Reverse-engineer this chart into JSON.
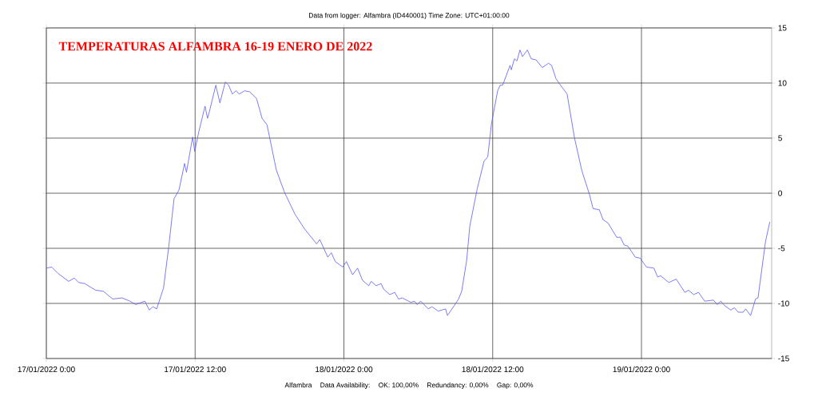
{
  "chart_data": {
    "type": "line",
    "title": "Data from logger: Alfambra (ID440001) Time Zone: UTC+01:00:00",
    "subtitle": "TEMPERATURAS ALFAMBRA 16-19 ENERO DE 2022",
    "annotations": [
      "Alfambra",
      "Data Availability:",
      "OK: 100,00%",
      "Redundancy: 0,00%",
      "Gap: 0,00%"
    ],
    "x": [
      "2022-01-17T00:00",
      "2022-01-17T00:26",
      "2022-01-17T00:58",
      "2022-01-17T01:48",
      "2022-01-17T02:15",
      "2022-01-17T02:36",
      "2022-01-17T03:06",
      "2022-01-17T03:58",
      "2022-01-17T04:36",
      "2022-01-17T05:21",
      "2022-01-17T06:06",
      "2022-01-17T06:45",
      "2022-01-17T07:12",
      "2022-01-17T07:57",
      "2022-01-17T08:18",
      "2022-01-17T08:36",
      "2022-01-17T08:54",
      "2022-01-17T09:27",
      "2022-01-17T09:52",
      "2022-01-17T10:18",
      "2022-01-17T10:42",
      "2022-01-17T11:09",
      "2022-01-17T11:18",
      "2022-01-17T11:48",
      "2022-01-17T11:58",
      "2022-01-17T12:18",
      "2022-01-17T12:48",
      "2022-01-17T13:00",
      "2022-01-17T13:09",
      "2022-01-17T13:40",
      "2022-01-17T14:00",
      "2022-01-17T14:26",
      "2022-01-17T14:42",
      "2022-01-17T15:00",
      "2022-01-17T15:18",
      "2022-01-17T15:33",
      "2022-01-17T16:00",
      "2022-01-17T16:24",
      "2022-01-17T16:57",
      "2022-01-17T17:24",
      "2022-01-17T17:48",
      "2022-01-17T18:33",
      "2022-01-17T19:12",
      "2022-01-17T20:03",
      "2022-01-17T20:48",
      "2022-01-17T21:48",
      "2022-01-17T22:03",
      "2022-01-17T22:42",
      "2022-01-17T22:59",
      "2022-01-17T23:18",
      "2022-01-17T23:54",
      "2022-01-18T00:12",
      "2022-01-18T00:42",
      "2022-01-18T01:06",
      "2022-01-18T01:30",
      "2022-01-18T02:00",
      "2022-01-18T02:12",
      "2022-01-18T02:36",
      "2022-01-18T03:00",
      "2022-01-18T03:12",
      "2022-01-18T03:42",
      "2022-01-18T04:06",
      "2022-01-18T04:24",
      "2022-01-18T04:42",
      "2022-01-18T05:24",
      "2022-01-18T05:42",
      "2022-01-18T05:54",
      "2022-01-18T06:12",
      "2022-01-18T06:48",
      "2022-01-18T07:06",
      "2022-01-18T07:36",
      "2022-01-18T08:12",
      "2022-01-18T08:21",
      "2022-01-18T08:54",
      "2022-01-18T09:15",
      "2022-01-18T09:30",
      "2022-01-18T09:54",
      "2022-01-18T10:09",
      "2022-01-18T10:45",
      "2022-01-18T11:18",
      "2022-01-18T11:36",
      "2022-01-18T11:54",
      "2022-01-18T12:24",
      "2022-01-18T12:36",
      "2022-01-18T12:48",
      "2022-01-18T13:24",
      "2022-01-18T13:30",
      "2022-01-18T13:45",
      "2022-01-18T13:57",
      "2022-01-18T14:12",
      "2022-01-18T14:24",
      "2022-01-18T14:48",
      "2022-01-18T15:06",
      "2022-01-18T15:30",
      "2022-01-18T16:00",
      "2022-01-18T16:30",
      "2022-01-18T16:45",
      "2022-01-18T17:06",
      "2022-01-18T17:36",
      "2022-01-18T18:00",
      "2022-01-18T18:36",
      "2022-01-18T19:12",
      "2022-01-18T19:48",
      "2022-01-18T20:06",
      "2022-01-18T20:36",
      "2022-01-18T20:54",
      "2022-01-18T21:18",
      "2022-01-18T22:00",
      "2022-01-18T22:18",
      "2022-01-18T22:36",
      "2022-01-18T22:54",
      "2022-01-18T23:30",
      "2022-01-18T23:54",
      "2022-01-19T00:24",
      "2022-01-19T01:00",
      "2022-01-19T01:18",
      "2022-01-19T01:33",
      "2022-01-19T02:12",
      "2022-01-19T02:48",
      "2022-01-19T03:30",
      "2022-01-19T03:48",
      "2022-01-19T04:12",
      "2022-01-19T04:36",
      "2022-01-19T05:06",
      "2022-01-19T05:48",
      "2022-01-19T06:06",
      "2022-01-19T06:24",
      "2022-01-19T06:42",
      "2022-01-19T07:12",
      "2022-01-19T07:30",
      "2022-01-19T07:48",
      "2022-01-19T08:12",
      "2022-01-19T08:24",
      "2022-01-19T08:48",
      "2022-01-19T09:12",
      "2022-01-19T09:24",
      "2022-01-19T10:00",
      "2022-01-19T10:21"
    ],
    "values": [
      -6.8,
      -6.7,
      -7.3,
      -8.0,
      -7.7,
      -8.1,
      -8.2,
      -8.8,
      -8.9,
      -9.6,
      -9.5,
      -9.8,
      -10.1,
      -9.8,
      -10.6,
      -10.3,
      -10.5,
      -8.6,
      -4.9,
      -0.5,
      0.3,
      2.7,
      1.9,
      5.1,
      3.8,
      5.6,
      7.9,
      6.8,
      7.4,
      9.8,
      8.2,
      10.1,
      9.8,
      9.0,
      9.3,
      9.0,
      9.3,
      9.2,
      8.6,
      6.8,
      6.2,
      2.1,
      0.1,
      -1.9,
      -3.2,
      -4.6,
      -4.2,
      -5.8,
      -5.4,
      -6.2,
      -6.7,
      -6.2,
      -7.4,
      -6.8,
      -7.9,
      -8.4,
      -8.0,
      -8.4,
      -8.2,
      -8.7,
      -9.2,
      -9.0,
      -9.6,
      -9.5,
      -9.9,
      -9.8,
      -10.1,
      -9.8,
      -10.5,
      -10.3,
      -10.7,
      -10.5,
      -11.1,
      -10.2,
      -9.6,
      -8.9,
      -6.1,
      -3.0,
      0.4,
      2.9,
      3.3,
      6.3,
      9.3,
      9.8,
      9.8,
      11.6,
      11.2,
      12.2,
      12.0,
      13.0,
      12.4,
      13.0,
      12.2,
      12.1,
      11.4,
      11.8,
      11.6,
      10.4,
      9.6,
      9.0,
      5.0,
      2.0,
      -0.1,
      -1.4,
      -1.5,
      -2.4,
      -2.7,
      -4.0,
      -4.0,
      -4.7,
      -4.8,
      -5.8,
      -5.9,
      -6.7,
      -6.8,
      -7.6,
      -7.5,
      -8.1,
      -7.8,
      -9.0,
      -8.8,
      -9.2,
      -9.0,
      -9.8,
      -9.7,
      -10.1,
      -9.8,
      -10.2,
      -10.6,
      -10.4,
      -10.8,
      -10.8,
      -10.5,
      -11.1,
      -9.6,
      -9.5,
      -4.4,
      -2.6
    ],
    "color": "#5b5bf0",
    "xlim": [
      "2022-01-17T00:00",
      "2022-01-19T10:30"
    ],
    "xticks": [
      {
        "value": "2022-01-17T00:00",
        "label": "17/01/2022 0:00"
      },
      {
        "value": "2022-01-17T12:00",
        "label": "17/01/2022 12:00"
      },
      {
        "value": "2022-01-18T00:00",
        "label": "18/01/2022 0:00"
      },
      {
        "value": "2022-01-18T12:00",
        "label": "18/01/2022 12:00"
      },
      {
        "value": "2022-01-19T00:00",
        "label": "19/01/2022 0:00"
      }
    ],
    "ylim": [
      -15,
      15
    ],
    "yticks": [
      -15,
      -10,
      -5,
      0,
      5,
      10,
      15
    ],
    "grid": true
  }
}
